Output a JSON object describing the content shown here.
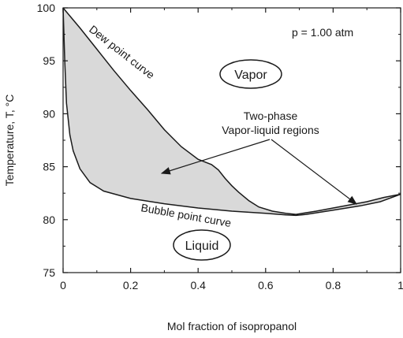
{
  "chart_data": {
    "type": "line",
    "xlabel": "Mol fraction of isopropanol",
    "ylabel": "Temperature, T, °C",
    "xlim": [
      0,
      1
    ],
    "ylim": [
      75,
      100
    ],
    "x_ticks": [
      "0",
      "0.2",
      "0.4",
      "0.6",
      "0.8",
      "1"
    ],
    "y_ticks": [
      "75",
      "80",
      "85",
      "90",
      "95",
      "100"
    ],
    "grid": false,
    "series": [
      {
        "name": "Dew point curve",
        "x": [
          0,
          0.05,
          0.1,
          0.15,
          0.2,
          0.25,
          0.3,
          0.35,
          0.4,
          0.44,
          0.46,
          0.48,
          0.5,
          0.52,
          0.55,
          0.58,
          0.62,
          0.66,
          0.69,
          0.75,
          0.8,
          0.85,
          0.9,
          0.95,
          1.0
        ],
        "y": [
          100.0,
          98.1,
          96.1,
          94.1,
          92.2,
          90.4,
          88.5,
          86.9,
          85.7,
          85.2,
          84.7,
          83.9,
          83.2,
          82.6,
          81.8,
          81.2,
          80.8,
          80.6,
          80.5,
          80.8,
          81.1,
          81.4,
          81.7,
          82.1,
          82.4
        ]
      },
      {
        "name": "Bubble point curve",
        "x": [
          0,
          0.005,
          0.01,
          0.02,
          0.03,
          0.05,
          0.08,
          0.12,
          0.2,
          0.3,
          0.4,
          0.5,
          0.6,
          0.66,
          0.69,
          0.72,
          0.8,
          0.88,
          0.94,
          1.0
        ],
        "y": [
          100.0,
          95.0,
          91.0,
          88.0,
          86.5,
          84.8,
          83.5,
          82.7,
          82.0,
          81.5,
          81.1,
          80.8,
          80.6,
          80.45,
          80.4,
          80.5,
          80.9,
          81.3,
          81.7,
          82.4
        ]
      }
    ],
    "annotations": {
      "pressure": "p = 1.00 atm",
      "dew_label": "Dew point curve",
      "bubble_label": "Bubble point curve",
      "vapor_label": "Vapor",
      "liquid_label": "Liquid",
      "two_phase_line1": "Two-phase",
      "two_phase_line2": "Vapor-liquid regions"
    },
    "colors": {
      "two_phase_fill": "#d9d9d9",
      "line": "#1a1a1a"
    }
  }
}
